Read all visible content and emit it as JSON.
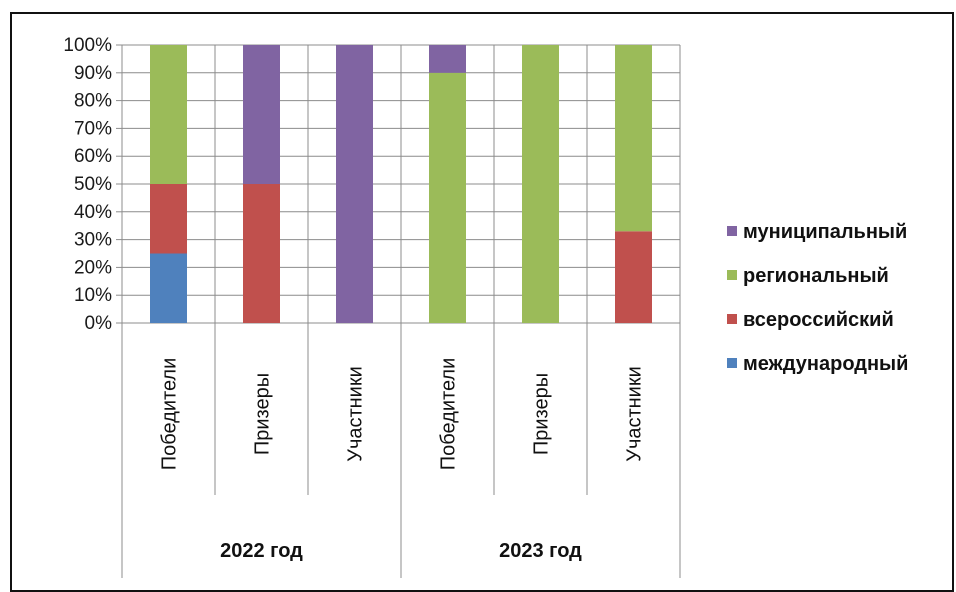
{
  "chart_data": {
    "type": "bar",
    "stacked": true,
    "percent": true,
    "categories": [
      "Победители",
      "Призеры",
      "Участники",
      "Победители",
      "Призеры",
      "Участники"
    ],
    "groups": [
      {
        "label": "2022 год",
        "categories": [
          0,
          1,
          2
        ]
      },
      {
        "label": "2023 год",
        "categories": [
          3,
          4,
          5
        ]
      }
    ],
    "series": [
      {
        "name": "международный",
        "color": "#4f81bd",
        "values": [
          25,
          0,
          0,
          0,
          0,
          0
        ]
      },
      {
        "name": "всероссийский",
        "color": "#c0504d",
        "values": [
          25,
          50,
          0,
          0,
          0,
          33
        ]
      },
      {
        "name": "региональный",
        "color": "#9bbb59",
        "values": [
          50,
          0,
          0,
          90,
          100,
          67
        ]
      },
      {
        "name": "муниципальный",
        "color": "#8064a2",
        "values": [
          0,
          50,
          100,
          10,
          0,
          0
        ]
      }
    ],
    "legend_order": [
      "муниципальный",
      "региональный",
      "всероссийский",
      "международный"
    ],
    "legend_position": "right",
    "y_ticks": [
      "0%",
      "10%",
      "20%",
      "30%",
      "40%",
      "50%",
      "60%",
      "70%",
      "80%",
      "90%",
      "100%"
    ],
    "ylim": [
      0,
      100
    ],
    "grid": true,
    "title": "",
    "xlabel": "",
    "ylabel": ""
  }
}
